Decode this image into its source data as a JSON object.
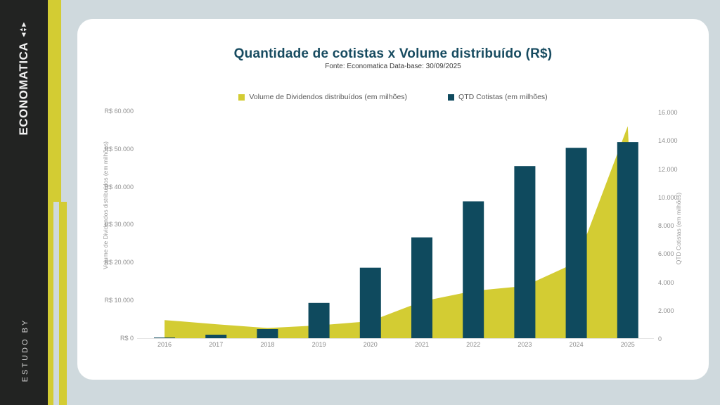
{
  "colors": {
    "teal": "#0f4a5e",
    "yellow": "#d3cc33",
    "background": "#cfd9dd",
    "rail_dark": "#222322",
    "title_text": "#174b60",
    "axis_line": "#e4e4e4"
  },
  "sidebar": {
    "brand": "ECONOMATICA",
    "estudo_by": "ESTUDO BY",
    "arrow_left": "◀",
    "arrow_up": "▲",
    "arrow_down": "▼",
    "arrow_right": "▶"
  },
  "header": {
    "title": "Quantidade de cotistas x Volume distribuído (R$)",
    "subtitle": "Fonte: Economatica Data-base: 30/09/2025"
  },
  "legend": [
    {
      "label": "Volume de Dividendos distribuídos (em milhões)",
      "color": "#d3cc33"
    },
    {
      "label": "QTD Cotistas  (em milhões)",
      "color": "#0f4a5e"
    }
  ],
  "chart_data": {
    "type": "combo",
    "categories": [
      "2016",
      "2017",
      "2018",
      "2019",
      "2020",
      "2021",
      "2022",
      "2023",
      "2024",
      "2025"
    ],
    "series": [
      {
        "name": "Volume de Dividendos distribuídos (em milhões)",
        "type": "area",
        "axis": "left",
        "color": "#d3cc33",
        "values": [
          4800,
          3700,
          2700,
          3400,
          4500,
          9700,
          12500,
          13800,
          20000,
          56000
        ]
      },
      {
        "name": "QTD Cotistas (em milhões)",
        "type": "bar",
        "axis": "right",
        "color": "#0f4a5e",
        "values": [
          50,
          250,
          650,
          2500,
          5000,
          7150,
          9700,
          12200,
          13500,
          13900
        ]
      }
    ],
    "left_axis": {
      "title": "Volume de Dividendos distribuídos (em milhões)",
      "min": 0,
      "max": 60000,
      "ticks": [
        "R$ 60.000",
        "R$ 50.000",
        "R$ 40.000",
        "R$ 30.000",
        "R$ 20.000",
        "R$ 10.000",
        "R$ 0"
      ]
    },
    "right_axis": {
      "title": "QTD Cotistas  (em milhões)",
      "min": 0,
      "max": 16000,
      "ticks": [
        "16.000",
        "14.000",
        "12.000",
        "10.000",
        "8.000",
        "6.000",
        "4.000",
        "2.000",
        "0"
      ]
    },
    "grid": false,
    "legend_position": "top-center"
  }
}
